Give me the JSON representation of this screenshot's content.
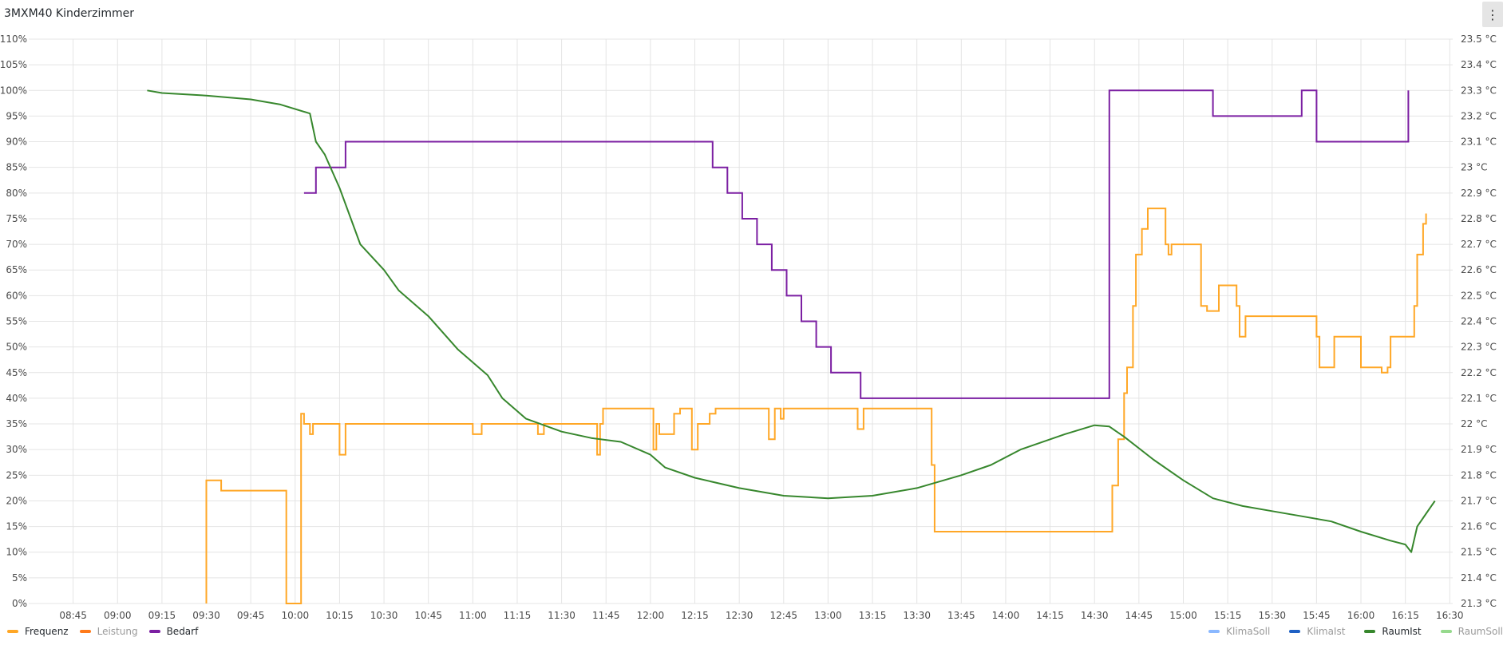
{
  "panel": {
    "title": "3MXM40 Kinderzimmer",
    "menu_icon": "⋮"
  },
  "chart_data": {
    "type": "line",
    "x_ticks": [
      "08:45",
      "09:00",
      "09:15",
      "09:30",
      "09:45",
      "10:00",
      "10:15",
      "10:30",
      "10:45",
      "11:00",
      "11:15",
      "11:30",
      "11:45",
      "12:00",
      "12:15",
      "12:30",
      "12:45",
      "13:00",
      "13:15",
      "13:30",
      "13:45",
      "14:00",
      "14:15",
      "14:30",
      "14:45",
      "15:00",
      "15:15",
      "15:30",
      "15:45",
      "16:00",
      "16:15",
      "16:30"
    ],
    "x_range": [
      "08:30",
      "16:31"
    ],
    "y_left": {
      "ticks": [
        "0%",
        "5%",
        "10%",
        "15%",
        "20%",
        "25%",
        "30%",
        "35%",
        "40%",
        "45%",
        "50%",
        "55%",
        "60%",
        "65%",
        "70%",
        "75%",
        "80%",
        "85%",
        "90%",
        "95%",
        "100%",
        "105%",
        "110%"
      ],
      "min": 0,
      "max": 110
    },
    "y_right": {
      "ticks": [
        "21.3 °C",
        "21.4 °C",
        "21.5 °C",
        "21.6 °C",
        "21.7 °C",
        "21.8 °C",
        "21.9 °C",
        "22 °C",
        "22.1 °C",
        "22.2 °C",
        "22.3 °C",
        "22.4 °C",
        "22.5 °C",
        "22.6 °C",
        "22.7 °C",
        "22.8 °C",
        "22.9 °C",
        "23 °C",
        "23.1 °C",
        "23.2 °C",
        "23.3 °C",
        "23.4 °C",
        "23.5 °C"
      ],
      "min": 21.3,
      "max": 23.5
    },
    "grid": true,
    "series": [
      {
        "name": "Frequenz",
        "color": "#ffa726",
        "axis": "left",
        "step": true,
        "hidden": false,
        "points": [
          [
            "09:30",
            0
          ],
          [
            "09:30",
            24
          ],
          [
            "09:35",
            24
          ],
          [
            "09:35",
            22
          ],
          [
            "09:57",
            22
          ],
          [
            "09:57",
            0
          ],
          [
            "10:02",
            0
          ],
          [
            "10:02",
            37
          ],
          [
            "10:03",
            37
          ],
          [
            "10:03",
            35
          ],
          [
            "10:05",
            35
          ],
          [
            "10:05",
            33
          ],
          [
            "10:06",
            33
          ],
          [
            "10:06",
            35
          ],
          [
            "10:15",
            35
          ],
          [
            "10:15",
            29
          ],
          [
            "10:17",
            29
          ],
          [
            "10:17",
            35
          ],
          [
            "11:00",
            35
          ],
          [
            "11:00",
            33
          ],
          [
            "11:03",
            33
          ],
          [
            "11:03",
            35
          ],
          [
            "11:22",
            35
          ],
          [
            "11:22",
            33
          ],
          [
            "11:24",
            33
          ],
          [
            "11:24",
            35
          ],
          [
            "11:42",
            35
          ],
          [
            "11:42",
            29
          ],
          [
            "11:43",
            29
          ],
          [
            "11:43",
            35
          ],
          [
            "11:44",
            35
          ],
          [
            "11:44",
            38
          ],
          [
            "12:01",
            38
          ],
          [
            "12:01",
            30
          ],
          [
            "12:02",
            30
          ],
          [
            "12:02",
            35
          ],
          [
            "12:03",
            35
          ],
          [
            "12:03",
            33
          ],
          [
            "12:08",
            33
          ],
          [
            "12:08",
            37
          ],
          [
            "12:10",
            37
          ],
          [
            "12:10",
            38
          ],
          [
            "12:14",
            38
          ],
          [
            "12:14",
            30
          ],
          [
            "12:16",
            30
          ],
          [
            "12:16",
            35
          ],
          [
            "12:20",
            35
          ],
          [
            "12:20",
            37
          ],
          [
            "12:22",
            37
          ],
          [
            "12:22",
            38
          ],
          [
            "12:40",
            38
          ],
          [
            "12:40",
            32
          ],
          [
            "12:42",
            32
          ],
          [
            "12:42",
            38
          ],
          [
            "12:44",
            38
          ],
          [
            "12:44",
            36
          ],
          [
            "12:45",
            36
          ],
          [
            "12:45",
            38
          ],
          [
            "13:10",
            38
          ],
          [
            "13:10",
            34
          ],
          [
            "13:12",
            34
          ],
          [
            "13:12",
            38
          ],
          [
            "13:35",
            38
          ],
          [
            "13:35",
            27
          ],
          [
            "13:36",
            27
          ],
          [
            "13:36",
            14
          ],
          [
            "14:36",
            14
          ],
          [
            "14:36",
            23
          ],
          [
            "14:38",
            23
          ],
          [
            "14:38",
            32
          ],
          [
            "14:40",
            32
          ],
          [
            "14:40",
            41
          ],
          [
            "14:41",
            41
          ],
          [
            "14:41",
            46
          ],
          [
            "14:43",
            46
          ],
          [
            "14:43",
            58
          ],
          [
            "14:44",
            58
          ],
          [
            "14:44",
            68
          ],
          [
            "14:46",
            68
          ],
          [
            "14:46",
            73
          ],
          [
            "14:48",
            73
          ],
          [
            "14:48",
            77
          ],
          [
            "14:54",
            77
          ],
          [
            "14:54",
            70
          ],
          [
            "14:55",
            70
          ],
          [
            "14:55",
            68
          ],
          [
            "14:56",
            68
          ],
          [
            "14:56",
            70
          ],
          [
            "15:06",
            70
          ],
          [
            "15:06",
            58
          ],
          [
            "15:08",
            58
          ],
          [
            "15:08",
            57
          ],
          [
            "15:12",
            57
          ],
          [
            "15:12",
            62
          ],
          [
            "15:18",
            62
          ],
          [
            "15:18",
            58
          ],
          [
            "15:19",
            58
          ],
          [
            "15:19",
            52
          ],
          [
            "15:21",
            52
          ],
          [
            "15:21",
            56
          ],
          [
            "15:45",
            56
          ],
          [
            "15:45",
            52
          ],
          [
            "15:46",
            52
          ],
          [
            "15:46",
            46
          ],
          [
            "15:51",
            46
          ],
          [
            "15:51",
            52
          ],
          [
            "16:00",
            52
          ],
          [
            "16:00",
            46
          ],
          [
            "16:07",
            46
          ],
          [
            "16:07",
            45
          ],
          [
            "16:09",
            45
          ],
          [
            "16:09",
            46
          ],
          [
            "16:10",
            46
          ],
          [
            "16:10",
            52
          ],
          [
            "16:18",
            52
          ],
          [
            "16:18",
            58
          ],
          [
            "16:19",
            58
          ],
          [
            "16:19",
            68
          ],
          [
            "16:21",
            68
          ],
          [
            "16:21",
            74
          ],
          [
            "16:22",
            74
          ],
          [
            "16:22",
            76
          ]
        ]
      },
      {
        "name": "Leistung",
        "color": "#ff7a1a",
        "axis": "left",
        "hidden": true
      },
      {
        "name": "Bedarf",
        "color": "#7b1fa2",
        "axis": "left",
        "step": true,
        "hidden": false,
        "points": [
          [
            "10:03",
            80
          ],
          [
            "10:07",
            80
          ],
          [
            "10:07",
            85
          ],
          [
            "10:17",
            85
          ],
          [
            "10:17",
            90
          ],
          [
            "12:21",
            90
          ],
          [
            "12:21",
            85
          ],
          [
            "12:26",
            85
          ],
          [
            "12:26",
            80
          ],
          [
            "12:31",
            80
          ],
          [
            "12:31",
            75
          ],
          [
            "12:36",
            75
          ],
          [
            "12:36",
            70
          ],
          [
            "12:41",
            70
          ],
          [
            "12:41",
            65
          ],
          [
            "12:46",
            65
          ],
          [
            "12:46",
            60
          ],
          [
            "12:51",
            60
          ],
          [
            "12:51",
            55
          ],
          [
            "12:56",
            55
          ],
          [
            "12:56",
            50
          ],
          [
            "13:01",
            50
          ],
          [
            "13:01",
            45
          ],
          [
            "13:11",
            45
          ],
          [
            "13:11",
            40
          ],
          [
            "14:35",
            40
          ],
          [
            "14:35",
            100
          ],
          [
            "15:10",
            100
          ],
          [
            "15:10",
            95
          ],
          [
            "15:40",
            95
          ],
          [
            "15:40",
            100
          ],
          [
            "15:45",
            100
          ],
          [
            "15:45",
            90
          ],
          [
            "16:16",
            90
          ],
          [
            "16:16",
            100
          ]
        ]
      },
      {
        "name": "KlimaSoll",
        "color": "#8ab8ff",
        "axis": "right",
        "hidden": true
      },
      {
        "name": "KlimaIst",
        "color": "#1f60c4",
        "axis": "right",
        "hidden": true
      },
      {
        "name": "RaumIst",
        "color": "#37872d",
        "axis": "right",
        "hidden": false,
        "points": [
          [
            "09:10",
            23.3
          ],
          [
            "09:15",
            23.29
          ],
          [
            "09:30",
            23.28
          ],
          [
            "09:45",
            23.265
          ],
          [
            "09:55",
            23.245
          ],
          [
            "10:05",
            23.21
          ],
          [
            "10:07",
            23.1
          ],
          [
            "10:10",
            23.05
          ],
          [
            "10:15",
            22.92
          ],
          [
            "10:22",
            22.7
          ],
          [
            "10:30",
            22.6
          ],
          [
            "10:35",
            22.52
          ],
          [
            "10:45",
            22.42
          ],
          [
            "10:55",
            22.29
          ],
          [
            "11:05",
            22.19
          ],
          [
            "11:10",
            22.1
          ],
          [
            "11:18",
            22.02
          ],
          [
            "11:30",
            21.97
          ],
          [
            "11:40",
            21.945
          ],
          [
            "11:50",
            21.93
          ],
          [
            "12:00",
            21.88
          ],
          [
            "12:05",
            21.83
          ],
          [
            "12:15",
            21.79
          ],
          [
            "12:30",
            21.75
          ],
          [
            "12:45",
            21.72
          ],
          [
            "13:00",
            21.71
          ],
          [
            "13:15",
            21.72
          ],
          [
            "13:30",
            21.75
          ],
          [
            "13:45",
            21.8
          ],
          [
            "13:55",
            21.84
          ],
          [
            "14:05",
            21.9
          ],
          [
            "14:20",
            21.96
          ],
          [
            "14:30",
            21.995
          ],
          [
            "14:35",
            21.99
          ],
          [
            "14:40",
            21.95
          ],
          [
            "14:50",
            21.86
          ],
          [
            "15:00",
            21.78
          ],
          [
            "15:10",
            21.71
          ],
          [
            "15:20",
            21.68
          ],
          [
            "15:30",
            21.66
          ],
          [
            "15:40",
            21.64
          ],
          [
            "15:50",
            21.62
          ],
          [
            "16:00",
            21.58
          ],
          [
            "16:10",
            21.545
          ],
          [
            "16:15",
            21.53
          ],
          [
            "16:17",
            21.5
          ],
          [
            "16:19",
            21.6
          ],
          [
            "16:22",
            21.65
          ],
          [
            "16:25",
            21.7
          ]
        ]
      },
      {
        "name": "RaumSoll",
        "color": "#96d98d",
        "axis": "right",
        "hidden": true
      }
    ]
  },
  "legend": {
    "left": [
      {
        "label": "Frequenz",
        "color": "#ffa726",
        "hidden": false
      },
      {
        "label": "Leistung",
        "color": "#ff7a1a",
        "hidden": true
      },
      {
        "label": "Bedarf",
        "color": "#7b1fa2",
        "hidden": false
      }
    ],
    "right": [
      {
        "label": "KlimaSoll",
        "color": "#8ab8ff",
        "hidden": true
      },
      {
        "label": "KlimaIst",
        "color": "#1f60c4",
        "hidden": true
      },
      {
        "label": "RaumIst",
        "color": "#37872d",
        "hidden": false
      },
      {
        "label": "RaumSoll",
        "color": "#96d98d",
        "hidden": true
      }
    ]
  }
}
